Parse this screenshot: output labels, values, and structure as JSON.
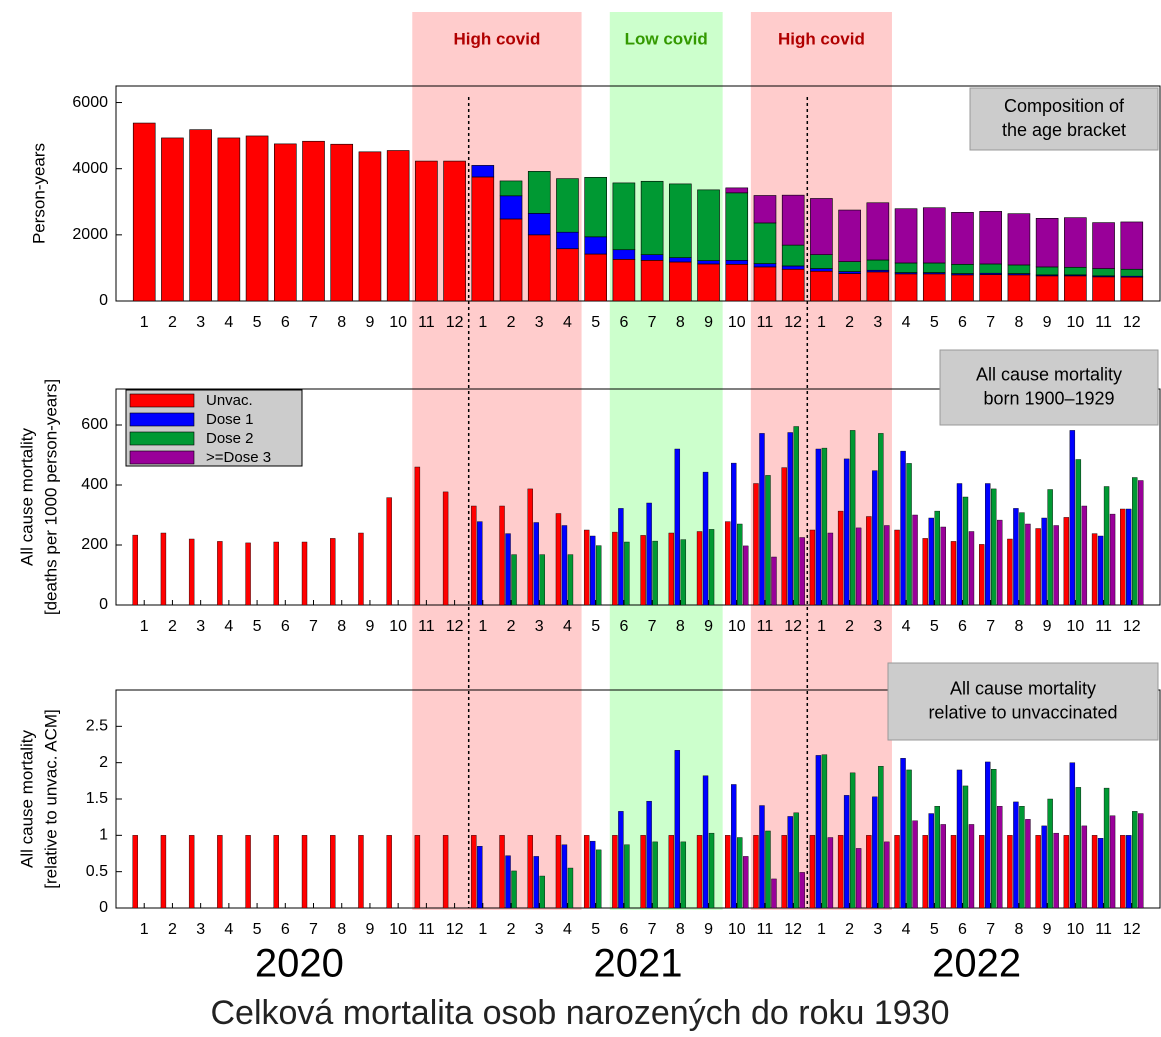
{
  "periods": [
    {
      "label": "High covid",
      "from": 10.5,
      "to": 16.5,
      "color": "#ffcccc",
      "text_color": "#b00000"
    },
    {
      "label": "Low covid",
      "from": 17.5,
      "to": 21.5,
      "color": "#ccffcc",
      "text_color": "#339900"
    },
    {
      "label": "High covid",
      "from": 22.5,
      "to": 27.5,
      "color": "#ffcccc",
      "text_color": "#b00000"
    }
  ],
  "dividers": [
    12.5,
    24.5
  ],
  "years": [
    "2020",
    "2021",
    "2022"
  ],
  "caption": "Celková mortalita osob narozených do roku 1930",
  "chart_data": [
    {
      "type": "bar",
      "stacked": true,
      "ylabel": [
        "Person-years"
      ],
      "annotation": [
        "Composition of",
        "the age bracket"
      ],
      "categories": [
        "1",
        "2",
        "3",
        "4",
        "5",
        "6",
        "7",
        "8",
        "9",
        "10",
        "11",
        "12",
        "1",
        "2",
        "3",
        "4",
        "5",
        "6",
        "7",
        "8",
        "9",
        "10",
        "11",
        "12",
        "1",
        "2",
        "3",
        "4",
        "5",
        "6",
        "7",
        "8",
        "9",
        "10",
        "11",
        "12"
      ],
      "ylim": [
        0,
        6500
      ],
      "yticks": [
        0,
        2000,
        4000,
        6000
      ],
      "series": [
        {
          "name": "Unvac.",
          "color": "#ff0000",
          "values": [
            5380,
            4930,
            5180,
            4930,
            4990,
            4750,
            4830,
            4740,
            4510,
            4550,
            4230,
            4230,
            3750,
            2480,
            2000,
            1580,
            1420,
            1260,
            1230,
            1180,
            1120,
            1110,
            1030,
            960,
            900,
            830,
            880,
            820,
            820,
            790,
            800,
            790,
            760,
            760,
            730,
            720
          ]
        },
        {
          "name": "Dose 1",
          "color": "#0000ff",
          "values": [
            null,
            null,
            null,
            null,
            null,
            null,
            null,
            null,
            null,
            null,
            null,
            null,
            350,
            700,
            650,
            500,
            520,
            290,
            170,
            130,
            100,
            120,
            100,
            100,
            80,
            60,
            50,
            40,
            40,
            40,
            40,
            40,
            30,
            30,
            30,
            30
          ]
        },
        {
          "name": "Dose 2",
          "color": "#009933",
          "values": [
            null,
            null,
            null,
            null,
            null,
            null,
            null,
            null,
            null,
            null,
            null,
            null,
            null,
            450,
            1270,
            1620,
            1800,
            2020,
            2220,
            2230,
            2140,
            2040,
            1230,
            630,
            420,
            300,
            310,
            290,
            290,
            280,
            280,
            260,
            240,
            230,
            220,
            210
          ]
        },
        {
          "name": ">=Dose 3",
          "color": "#990099",
          "values": [
            null,
            null,
            null,
            null,
            null,
            null,
            null,
            null,
            null,
            null,
            null,
            null,
            null,
            null,
            null,
            null,
            null,
            null,
            null,
            null,
            null,
            150,
            830,
            1510,
            1700,
            1560,
            1730,
            1640,
            1670,
            1570,
            1590,
            1550,
            1470,
            1500,
            1390,
            1430
          ]
        }
      ]
    },
    {
      "type": "bar",
      "stacked": false,
      "legend": "upper left",
      "ylabel": [
        "All cause mortality",
        "[deaths per 1000 person-years]"
      ],
      "annotation": [
        "All cause mortality",
        "born 1900–1929"
      ],
      "categories": [
        "1",
        "2",
        "3",
        "4",
        "5",
        "6",
        "7",
        "8",
        "9",
        "10",
        "11",
        "12",
        "1",
        "2",
        "3",
        "4",
        "5",
        "6",
        "7",
        "8",
        "9",
        "10",
        "11",
        "12",
        "1",
        "2",
        "3",
        "4",
        "5",
        "6",
        "7",
        "8",
        "9",
        "10",
        "11",
        "12"
      ],
      "ylim": [
        0,
        720
      ],
      "yticks": [
        0,
        200,
        400,
        600
      ],
      "series": [
        {
          "name": "Unvac.",
          "color": "#ff0000",
          "values": [
            233,
            240,
            220,
            212,
            207,
            210,
            210,
            222,
            240,
            358,
            460,
            377,
            330,
            330,
            387,
            305,
            250,
            243,
            232,
            240,
            245,
            278,
            405,
            458,
            250,
            313,
            295,
            250,
            222,
            212,
            202,
            220,
            255,
            292,
            238,
            320
          ]
        },
        {
          "name": "Dose 1",
          "color": "#0000ff",
          "values": [
            null,
            null,
            null,
            null,
            null,
            null,
            null,
            null,
            null,
            null,
            null,
            null,
            278,
            238,
            275,
            265,
            230,
            322,
            340,
            520,
            443,
            473,
            572,
            575,
            520,
            487,
            448,
            513,
            290,
            405,
            405,
            322,
            290,
            582,
            230,
            320
          ]
        },
        {
          "name": "Dose 2",
          "color": "#009933",
          "values": [
            null,
            null,
            null,
            null,
            null,
            null,
            null,
            null,
            null,
            null,
            null,
            null,
            null,
            168,
            168,
            168,
            198,
            210,
            213,
            218,
            252,
            270,
            432,
            595,
            523,
            582,
            572,
            472,
            313,
            360,
            387,
            308,
            385,
            485,
            395,
            425
          ]
        },
        {
          "name": ">=Dose 3",
          "color": "#990099",
          "values": [
            null,
            null,
            null,
            null,
            null,
            null,
            null,
            null,
            null,
            null,
            null,
            null,
            null,
            null,
            null,
            null,
            null,
            null,
            null,
            null,
            null,
            197,
            160,
            225,
            240,
            257,
            265,
            300,
            260,
            245,
            283,
            270,
            265,
            330,
            303,
            415
          ]
        }
      ]
    },
    {
      "type": "bar",
      "stacked": false,
      "ylabel": [
        "All cause mortality",
        "[relative to unvac. ACM]"
      ],
      "annotation": [
        "All cause mortality",
        "relative to unvaccinated"
      ],
      "categories": [
        "1",
        "2",
        "3",
        "4",
        "5",
        "6",
        "7",
        "8",
        "9",
        "10",
        "11",
        "12",
        "1",
        "2",
        "3",
        "4",
        "5",
        "6",
        "7",
        "8",
        "9",
        "10",
        "11",
        "12",
        "1",
        "2",
        "3",
        "4",
        "5",
        "6",
        "7",
        "8",
        "9",
        "10",
        "11",
        "12"
      ],
      "ylim": [
        0,
        3
      ],
      "yticks": [
        0,
        0.5,
        1,
        1.5,
        2,
        2.5
      ],
      "series": [
        {
          "name": "Unvac.",
          "color": "#ff0000",
          "values": [
            1,
            1,
            1,
            1,
            1,
            1,
            1,
            1,
            1,
            1,
            1,
            1,
            1,
            1,
            1,
            1,
            1,
            1,
            1,
            1,
            1,
            1,
            1,
            1,
            1,
            1,
            1,
            1,
            1,
            1,
            1,
            1,
            1,
            1,
            1,
            1
          ]
        },
        {
          "name": "Dose 1",
          "color": "#0000ff",
          "values": [
            null,
            null,
            null,
            null,
            null,
            null,
            null,
            null,
            null,
            null,
            null,
            null,
            0.85,
            0.72,
            0.71,
            0.87,
            0.92,
            1.33,
            1.47,
            2.17,
            1.82,
            1.7,
            1.41,
            1.26,
            2.1,
            1.55,
            1.53,
            2.06,
            1.3,
            1.9,
            2.01,
            1.46,
            1.13,
            2,
            0.96,
            1
          ]
        },
        {
          "name": "Dose 2",
          "color": "#009933",
          "values": [
            null,
            null,
            null,
            null,
            null,
            null,
            null,
            null,
            null,
            null,
            null,
            null,
            null,
            0.51,
            0.44,
            0.55,
            0.8,
            0.87,
            0.91,
            0.91,
            1.03,
            0.97,
            1.06,
            1.31,
            2.11,
            1.86,
            1.95,
            1.9,
            1.4,
            1.68,
            1.91,
            1.4,
            1.5,
            1.66,
            1.65,
            1.33
          ]
        },
        {
          "name": ">=Dose 3",
          "color": "#990099",
          "values": [
            null,
            null,
            null,
            null,
            null,
            null,
            null,
            null,
            null,
            null,
            null,
            null,
            null,
            null,
            null,
            null,
            null,
            null,
            null,
            null,
            null,
            0.71,
            0.4,
            0.49,
            0.97,
            0.82,
            0.91,
            1.2,
            1.15,
            1.15,
            1.4,
            1.22,
            1.03,
            1.13,
            1.27,
            1.3
          ]
        }
      ]
    }
  ]
}
